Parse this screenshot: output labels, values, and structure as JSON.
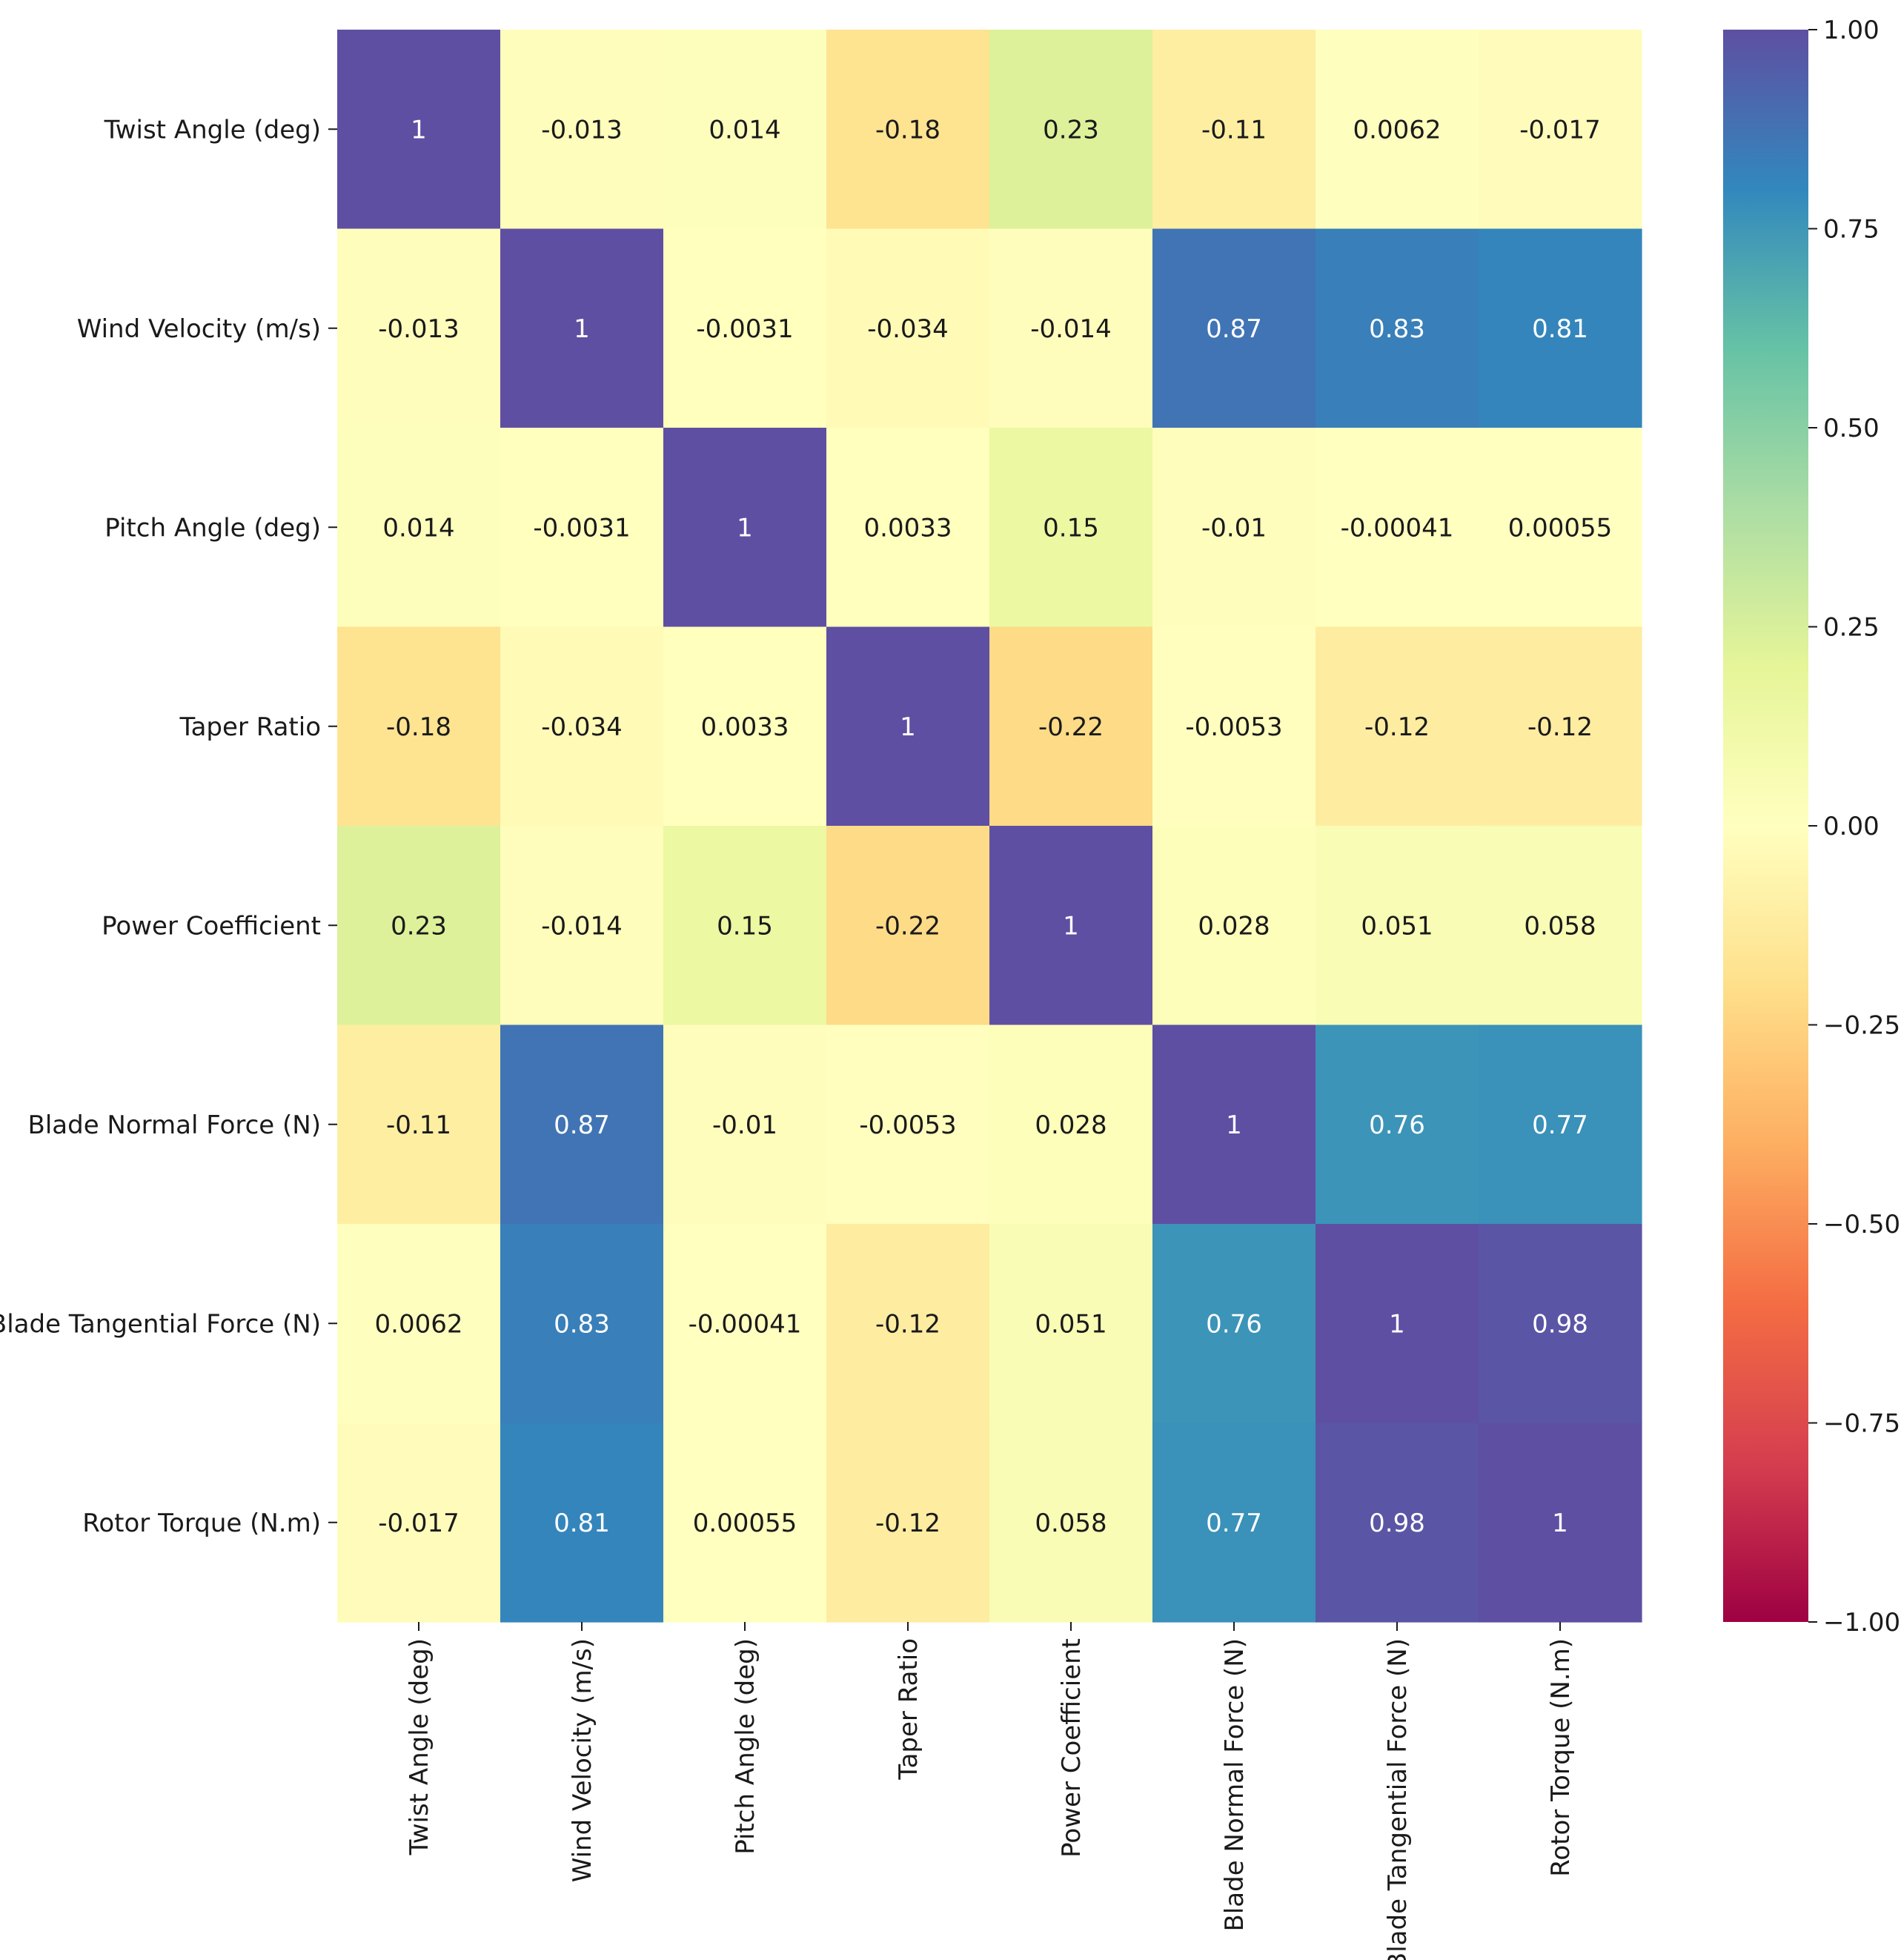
{
  "chart_data": {
    "type": "heatmap",
    "title": "",
    "xlabel": "",
    "ylabel": "",
    "colormap": "Spectral",
    "vmin": -1.0,
    "vmax": 1.0,
    "x_labels": [
      "Twist Angle (deg)",
      "Wind Velocity (m/s)",
      "Pitch Angle (deg)",
      "Taper Ratio",
      "Power Coefficient",
      "Blade Normal Force (N)",
      "Blade Tangential Force (N)",
      "Rotor Torque (N.m)"
    ],
    "y_labels": [
      "Twist Angle (deg)",
      "Wind Velocity (m/s)",
      "Pitch Angle (deg)",
      "Taper Ratio",
      "Power Coefficient",
      "Blade Normal Force (N)",
      "Blade Tangential Force (N)",
      "Rotor Torque (N.m)"
    ],
    "values": [
      [
        1,
        -0.013,
        0.014,
        -0.18,
        0.23,
        -0.11,
        0.0062,
        -0.017
      ],
      [
        -0.013,
        1,
        -0.0031,
        -0.034,
        -0.014,
        0.87,
        0.83,
        0.81
      ],
      [
        0.014,
        -0.0031,
        1,
        0.0033,
        0.15,
        -0.01,
        -0.00041,
        0.00055
      ],
      [
        -0.18,
        -0.034,
        0.0033,
        1,
        -0.22,
        -0.0053,
        -0.12,
        -0.12
      ],
      [
        0.23,
        -0.014,
        0.15,
        -0.22,
        1,
        0.028,
        0.051,
        0.058
      ],
      [
        -0.11,
        0.87,
        -0.01,
        -0.0053,
        0.028,
        1,
        0.76,
        0.77
      ],
      [
        0.0062,
        0.83,
        -0.00041,
        -0.12,
        0.051,
        0.76,
        1,
        0.98
      ],
      [
        -0.017,
        0.81,
        0.00055,
        -0.12,
        0.058,
        0.77,
        0.98,
        1
      ]
    ],
    "annotations": [
      [
        "1",
        "-0.013",
        "0.014",
        "-0.18",
        "0.23",
        "-0.11",
        "0.0062",
        "-0.017"
      ],
      [
        "-0.013",
        "1",
        "-0.0031",
        "-0.034",
        "-0.014",
        "0.87",
        "0.83",
        "0.81"
      ],
      [
        "0.014",
        "-0.0031",
        "1",
        "0.0033",
        "0.15",
        "-0.01",
        "-0.00041",
        "0.00055"
      ],
      [
        "-0.18",
        "-0.034",
        "0.0033",
        "1",
        "-0.22",
        "-0.0053",
        "-0.12",
        "-0.12"
      ],
      [
        "0.23",
        "-0.014",
        "0.15",
        "-0.22",
        "1",
        "0.028",
        "0.051",
        "0.058"
      ],
      [
        "-0.11",
        "0.87",
        "-0.01",
        "-0.0053",
        "0.028",
        "1",
        "0.76",
        "0.77"
      ],
      [
        "0.0062",
        "0.83",
        "-0.00041",
        "-0.12",
        "0.051",
        "0.76",
        "1",
        "0.98"
      ],
      [
        "-0.017",
        "0.81",
        "0.00055",
        "-0.12",
        "0.058",
        "0.77",
        "0.98",
        "1"
      ]
    ],
    "colorbar": {
      "ticks": [
        1.0,
        0.75,
        0.5,
        0.25,
        0.0,
        -0.25,
        -0.5,
        -0.75,
        -1.0
      ],
      "tick_labels": [
        "1.00",
        "0.75",
        "0.50",
        "0.25",
        "0.00",
        "−0.25",
        "−0.50",
        "−0.75",
        "−1.00"
      ]
    },
    "grid": false,
    "legend": "colorbar-right"
  }
}
